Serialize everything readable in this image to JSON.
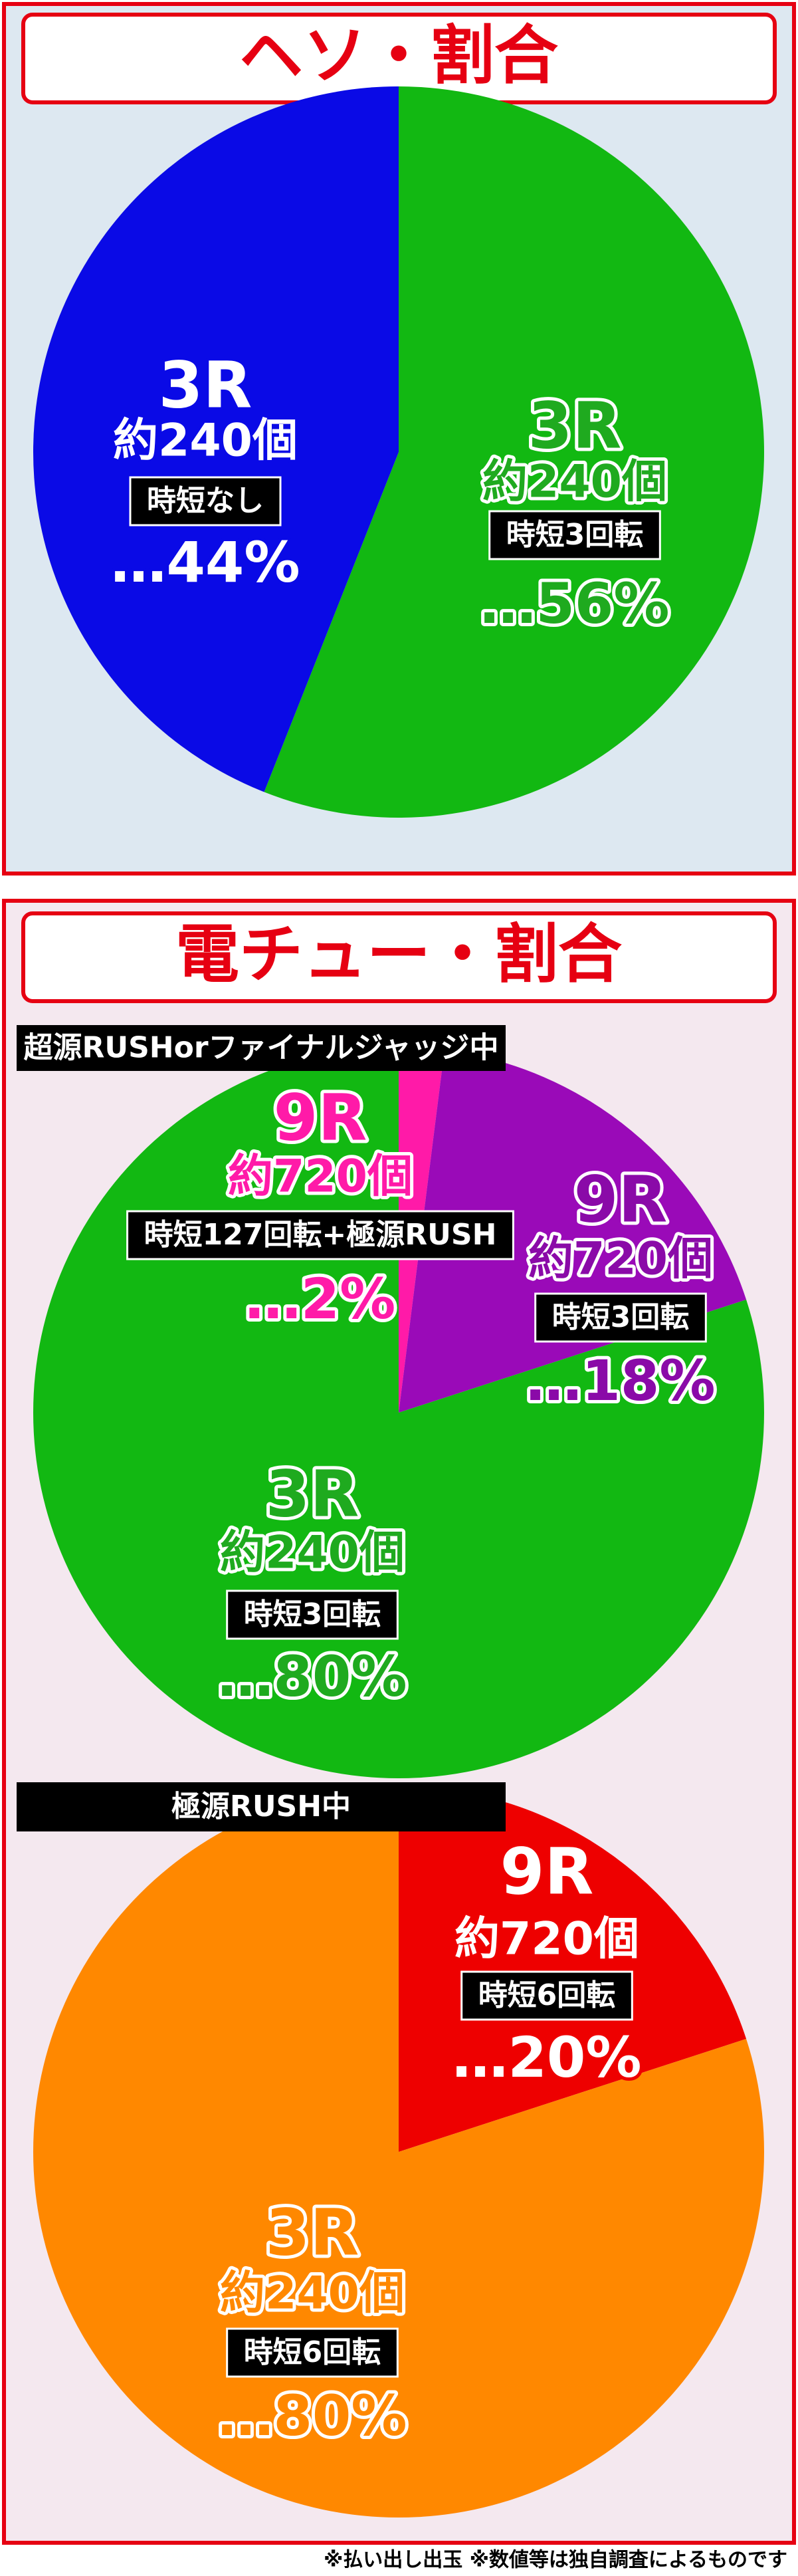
{
  "headers": [
    "ヘソ・割合",
    "電チュー・割合"
  ],
  "footnote": "※払い出し出玉 ※数値等は独自調査によるものです",
  "chart_data": [
    {
      "type": "pie",
      "rounds": [
        "3R",
        "3R"
      ],
      "balls": [
        "約240個",
        "約240個"
      ],
      "jitan": [
        "時短3回転",
        "時短なし"
      ],
      "values": [
        56,
        44
      ],
      "value_labels": [
        "…56%",
        "…44%"
      ],
      "colors": [
        "#12b812",
        "#0a0ae6"
      ],
      "label_colors": [
        "#1faa1f",
        "#ffffff"
      ]
    },
    {
      "type": "pie",
      "subtitle": "超源RUSHorファイナルジャッジ中",
      "rounds": [
        "9R",
        "9R",
        "3R"
      ],
      "balls": [
        "約720個",
        "約720個",
        "約240個"
      ],
      "jitan": [
        "時短127回転+極源RUSH",
        "時短3回転",
        "時短3回転"
      ],
      "values": [
        2,
        18,
        80
      ],
      "value_labels": [
        "…2%",
        "…18%",
        "…80%"
      ],
      "colors": [
        "#ff1aa8",
        "#9a0ab8",
        "#12b812"
      ],
      "label_colors": [
        "#ff1aa8",
        "#8a0aa8",
        "#1faa1f"
      ]
    },
    {
      "type": "pie",
      "subtitle": "極源RUSH中",
      "rounds": [
        "9R",
        "3R"
      ],
      "balls": [
        "約720個",
        "約240個"
      ],
      "jitan": [
        "時短6回転",
        "時短6回転"
      ],
      "values": [
        20,
        80
      ],
      "value_labels": [
        "…20%",
        "…80%"
      ],
      "colors": [
        "#ee0000",
        "#ff8800"
      ],
      "label_colors": [
        "#ffffff",
        "#ff8800"
      ]
    }
  ]
}
